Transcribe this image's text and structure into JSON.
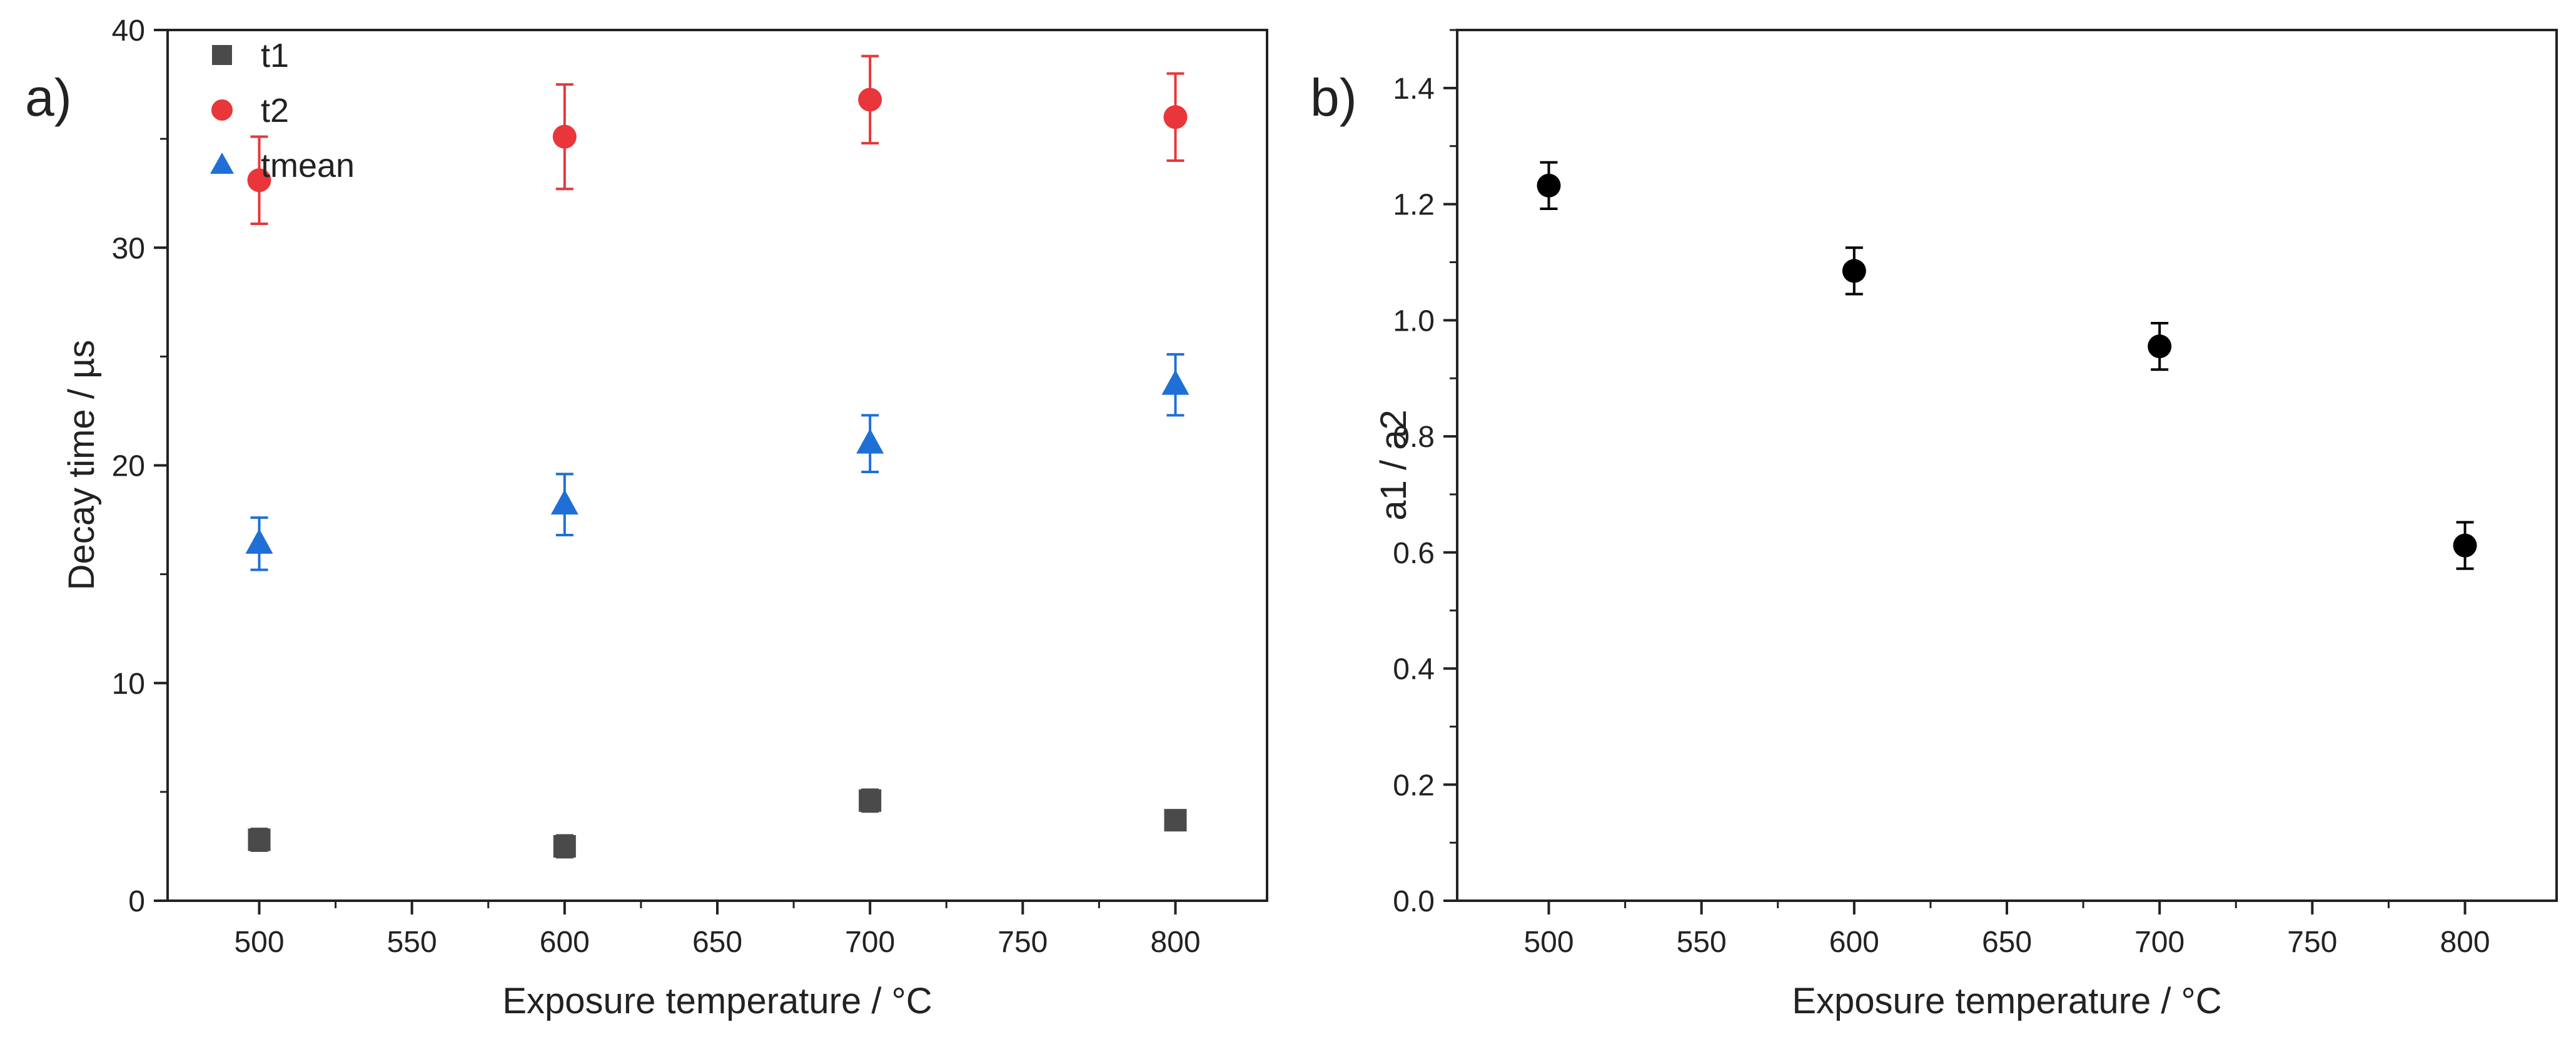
{
  "chart_data": [
    {
      "type": "scatter",
      "panel_label": "a)",
      "xlabel": "Exposure temperature / °C",
      "ylabel": "Decay time / µs",
      "xlim": [
        470,
        830
      ],
      "ylim": [
        0,
        40
      ],
      "x_ticks": [
        500,
        550,
        600,
        650,
        700,
        750,
        800
      ],
      "y_ticks": [
        0,
        10,
        20,
        30,
        40
      ],
      "legend_position": "top-left",
      "series": [
        {
          "name": "t1",
          "marker": "square",
          "color": "#4a4a4a",
          "x": [
            500,
            600,
            700,
            800
          ],
          "y": [
            2.8,
            2.5,
            4.6,
            3.7
          ],
          "err": [
            0.5,
            0.5,
            0.5,
            0.4
          ]
        },
        {
          "name": "t2",
          "marker": "circle",
          "color": "#e8363a",
          "x": [
            500,
            600,
            700,
            800
          ],
          "y": [
            33.1,
            35.1,
            36.8,
            36.0
          ],
          "err": [
            2.0,
            2.4,
            2.0,
            2.0
          ]
        },
        {
          "name": "tmean",
          "marker": "triangle",
          "color": "#1f6fd6",
          "x": [
            500,
            600,
            700,
            800
          ],
          "y": [
            16.4,
            18.2,
            21.0,
            23.7
          ],
          "err": [
            1.2,
            1.4,
            1.3,
            1.4
          ]
        }
      ]
    },
    {
      "type": "scatter",
      "panel_label": "b)",
      "xlabel": "Exposure temperature / °C",
      "ylabel": "a1 / a2",
      "xlim": [
        470,
        830
      ],
      "ylim": [
        0,
        1.5
      ],
      "x_ticks": [
        500,
        550,
        600,
        650,
        700,
        750,
        800
      ],
      "y_ticks": [
        0.0,
        0.2,
        0.4,
        0.6,
        0.8,
        1.0,
        1.2,
        1.4
      ],
      "y_tick_labels": [
        "0.0",
        "0.2",
        "0.4",
        "0.6",
        "0.8",
        "1.0",
        "1.2",
        "1.4"
      ],
      "series": [
        {
          "name": "a1 / a2",
          "marker": "circle",
          "color": "#000000",
          "x": [
            500,
            600,
            700,
            800
          ],
          "y": [
            1.232,
            1.085,
            0.955,
            0.612
          ],
          "err": [
            0.04,
            0.04,
            0.04,
            0.04
          ]
        }
      ]
    }
  ]
}
